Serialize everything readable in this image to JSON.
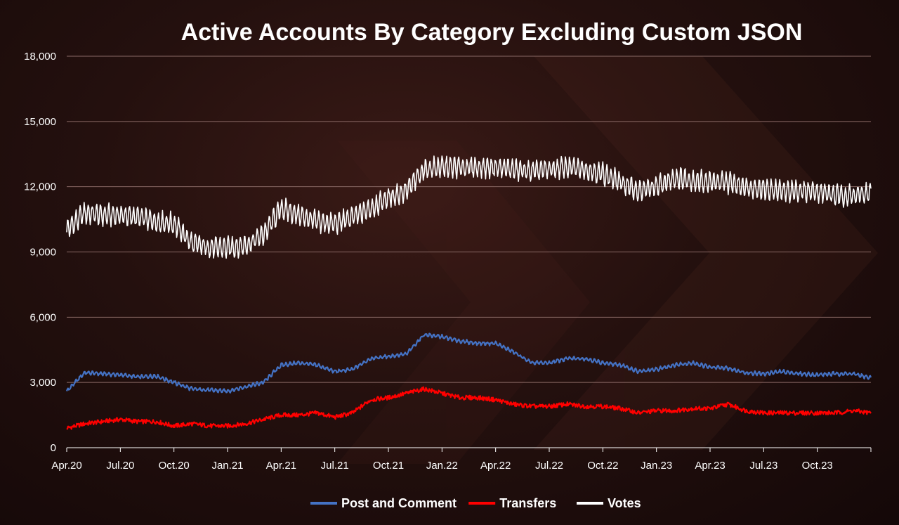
{
  "chart_data": {
    "type": "line",
    "title": "Active Accounts By Category Excluding Custom JSON",
    "xlabel": "",
    "ylabel": "",
    "ylim": [
      0,
      18000
    ],
    "y_ticks": [
      "0",
      "3,000",
      "6,000",
      "9,000",
      "12,000",
      "15,000",
      "18,000"
    ],
    "y_tick_values": [
      0,
      3000,
      6000,
      9000,
      12000,
      15000,
      18000
    ],
    "x_range_months": [
      "Apr.20",
      "Jan.24"
    ],
    "x_ticks": [
      "Apr.20",
      "Jul.20",
      "Oct.20",
      "Jan.21",
      "Apr.21",
      "Jul.21",
      "Oct.21",
      "Jan.22",
      "Apr.22",
      "Jul.22",
      "Oct.22",
      "Jan.23",
      "Apr.23",
      "Jul.23",
      "Oct.23"
    ],
    "grid": "horizontal",
    "legend_position": "bottom",
    "x": [
      "Apr.20",
      "May.20",
      "Jun.20",
      "Jul.20",
      "Aug.20",
      "Sep.20",
      "Oct.20",
      "Nov.20",
      "Dec.20",
      "Jan.21",
      "Feb.21",
      "Mar.21",
      "Apr.21",
      "May.21",
      "Jun.21",
      "Jul.21",
      "Aug.21",
      "Sep.21",
      "Oct.21",
      "Nov.21",
      "Dec.21",
      "Jan.22",
      "Feb.22",
      "Mar.22",
      "Apr.22",
      "May.22",
      "Jun.22",
      "Jul.22",
      "Aug.22",
      "Sep.22",
      "Oct.22",
      "Nov.22",
      "Dec.22",
      "Jan.23",
      "Feb.23",
      "Mar.23",
      "Apr.23",
      "May.23",
      "Jun.23",
      "Jul.23",
      "Aug.23",
      "Sep.23",
      "Oct.23",
      "Nov.23",
      "Dec.23",
      "Jan.24"
    ],
    "series": [
      {
        "name": "Post and Comment",
        "color": "#4472c4",
        "values": [
          2600,
          3450,
          3400,
          3350,
          3250,
          3300,
          3000,
          2700,
          2650,
          2600,
          2800,
          3000,
          3800,
          3900,
          3800,
          3500,
          3600,
          4100,
          4200,
          4300,
          5200,
          5100,
          4900,
          4800,
          4800,
          4400,
          3900,
          3900,
          4100,
          4100,
          3900,
          3800,
          3500,
          3600,
          3800,
          3900,
          3700,
          3650,
          3450,
          3400,
          3500,
          3400,
          3350,
          3400,
          3400,
          3200
        ]
      },
      {
        "name": "Transfers",
        "color": "#ff0000",
        "values": [
          900,
          1100,
          1200,
          1300,
          1200,
          1200,
          1000,
          1100,
          1000,
          1000,
          1100,
          1300,
          1500,
          1500,
          1600,
          1400,
          1600,
          2200,
          2300,
          2500,
          2700,
          2500,
          2300,
          2300,
          2200,
          2000,
          1900,
          1900,
          2000,
          1900,
          1900,
          1800,
          1600,
          1700,
          1700,
          1800,
          1800,
          2000,
          1700,
          1600,
          1600,
          1600,
          1600,
          1600,
          1700,
          1600
        ]
      },
      {
        "name": "Votes",
        "color": "#ffffff",
        "values": [
          10000,
          10800,
          10700,
          10700,
          10600,
          10400,
          10300,
          9400,
          9200,
          9200,
          9300,
          9800,
          11000,
          10700,
          10400,
          10300,
          10600,
          11000,
          11500,
          11800,
          12800,
          12900,
          12900,
          12900,
          12900,
          12800,
          12700,
          12800,
          12900,
          12800,
          12600,
          12200,
          11800,
          12000,
          12400,
          12300,
          12200,
          12200,
          12000,
          11900,
          11800,
          11800,
          11800,
          11600,
          11600,
          11700
        ]
      }
    ]
  },
  "colors": {
    "grid": "#8a6a66",
    "axis": "#ffffff",
    "background": "#1a0c0c"
  }
}
